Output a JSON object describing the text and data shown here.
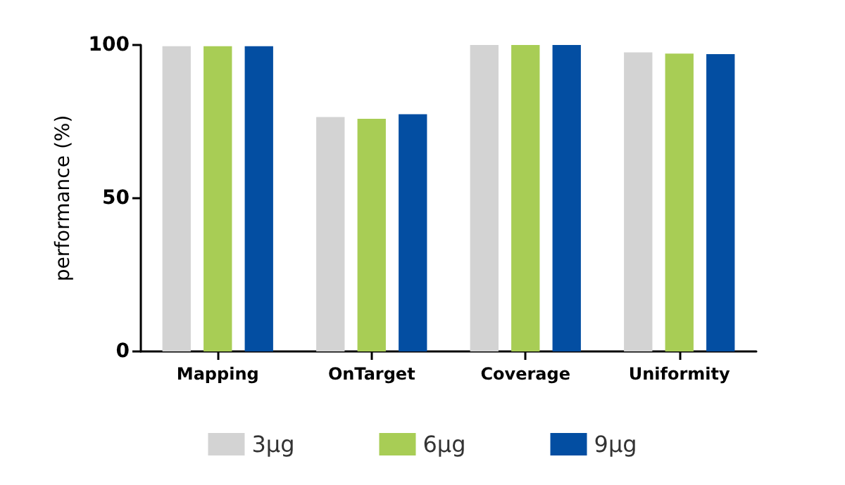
{
  "chart_data": {
    "type": "bar",
    "ylabel": "performance (%)",
    "categories": [
      "Mapping",
      "OnTarget",
      "Coverage",
      "Uniformity"
    ],
    "series": [
      {
        "name": "3μg",
        "color": "#d3d3d3",
        "values": [
          99.6,
          76.5,
          100,
          97.6
        ]
      },
      {
        "name": "6μg",
        "color": "#a8cd55",
        "values": [
          99.6,
          75.9,
          100,
          97.2
        ]
      },
      {
        "name": "9μg",
        "color": "#034ea2",
        "values": [
          99.6,
          77.4,
          100,
          97.0
        ]
      }
    ],
    "ylim": [
      0,
      100
    ],
    "yticks": [
      0,
      50,
      100
    ],
    "grid": false,
    "legend": "bottom"
  }
}
